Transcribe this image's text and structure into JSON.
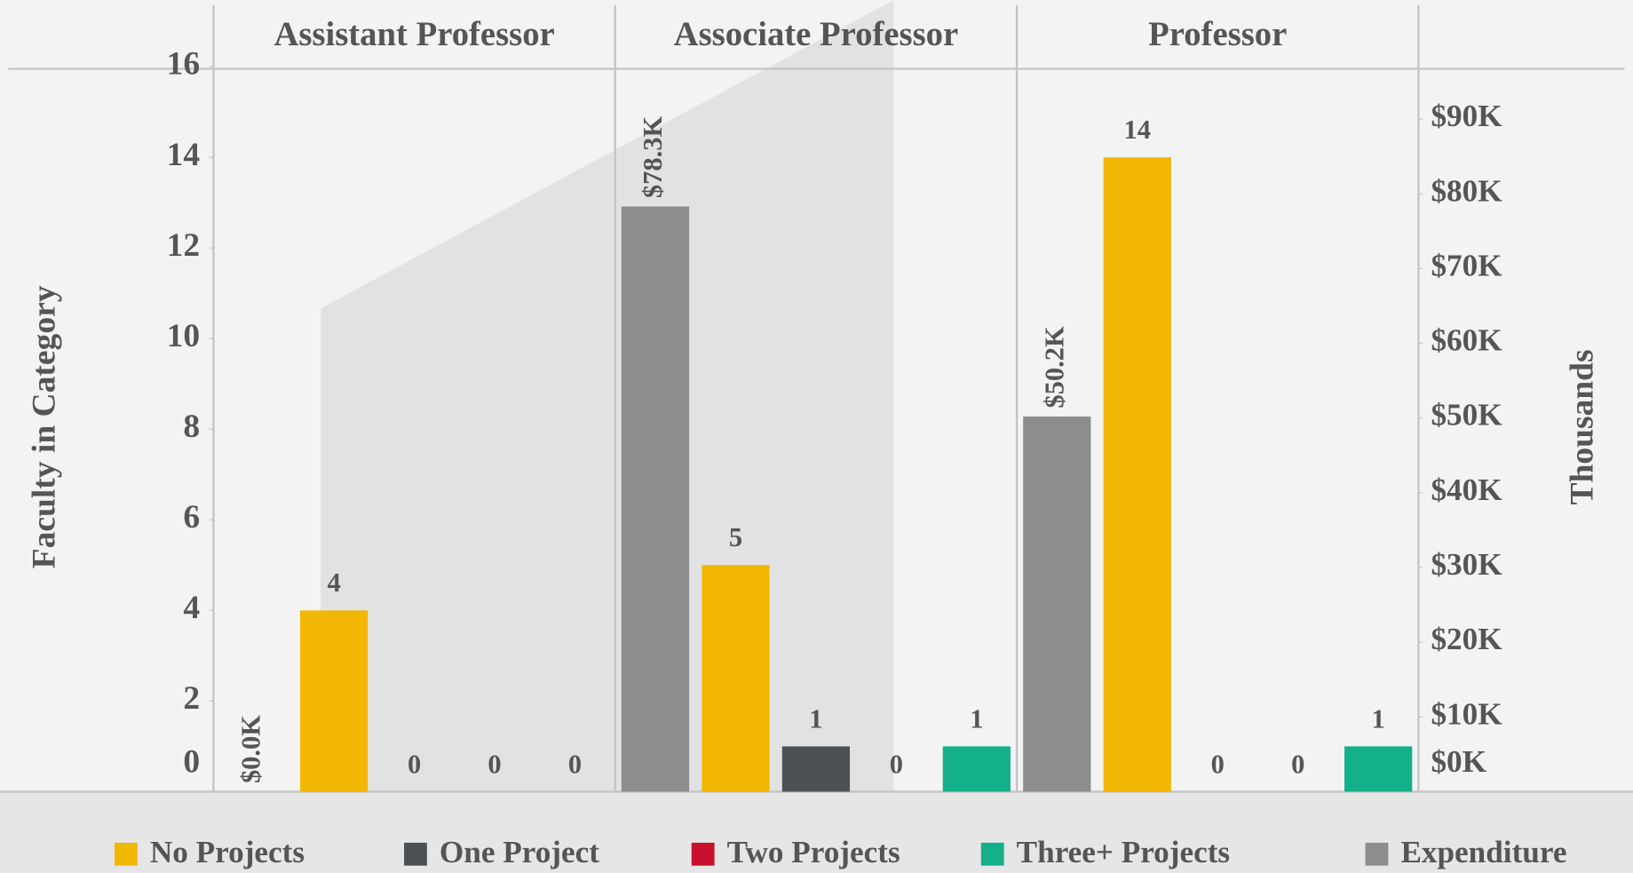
{
  "chart_data": {
    "type": "bar",
    "y_label": "Faculty in Category",
    "y2_label": "Thousands",
    "categories": [
      "Assistant Professor",
      "Associate Professor",
      "Professor"
    ],
    "series": [
      {
        "name": "Expenditure",
        "color": "#8b8d8f",
        "axis": "y2",
        "values": [
          0,
          78.3,
          50.2
        ],
        "value_labels": [
          "$0.0K",
          "$78.3K",
          "$50.2K"
        ]
      },
      {
        "name": "No Projects",
        "color": "#f2b705",
        "values": [
          4,
          5,
          14
        ]
      },
      {
        "name": "One Project",
        "color": "#4c5054",
        "values": [
          0,
          1,
          0
        ]
      },
      {
        "name": "Two Projects",
        "color": "#c8102e",
        "values": [
          0,
          0,
          0
        ]
      },
      {
        "name": "Three+ Projects",
        "color": "#13b08a",
        "values": [
          0,
          1,
          1
        ]
      }
    ],
    "ylim": [
      0,
      16
    ],
    "yticks": [
      0,
      2,
      4,
      6,
      8,
      10,
      12,
      14,
      16
    ],
    "y2lim": [
      0,
      97
    ],
    "y2ticks": [
      {
        "value": 0,
        "label": "$0K"
      },
      {
        "value": 10,
        "label": "$10K"
      },
      {
        "value": 20,
        "label": "$20K"
      },
      {
        "value": 30,
        "label": "$30K"
      },
      {
        "value": 40,
        "label": "$40K"
      },
      {
        "value": 50,
        "label": "$50K"
      },
      {
        "value": 60,
        "label": "$60K"
      },
      {
        "value": 70,
        "label": "$70K"
      },
      {
        "value": 80,
        "label": "$80K"
      },
      {
        "value": 90,
        "label": "$90K"
      }
    ]
  }
}
